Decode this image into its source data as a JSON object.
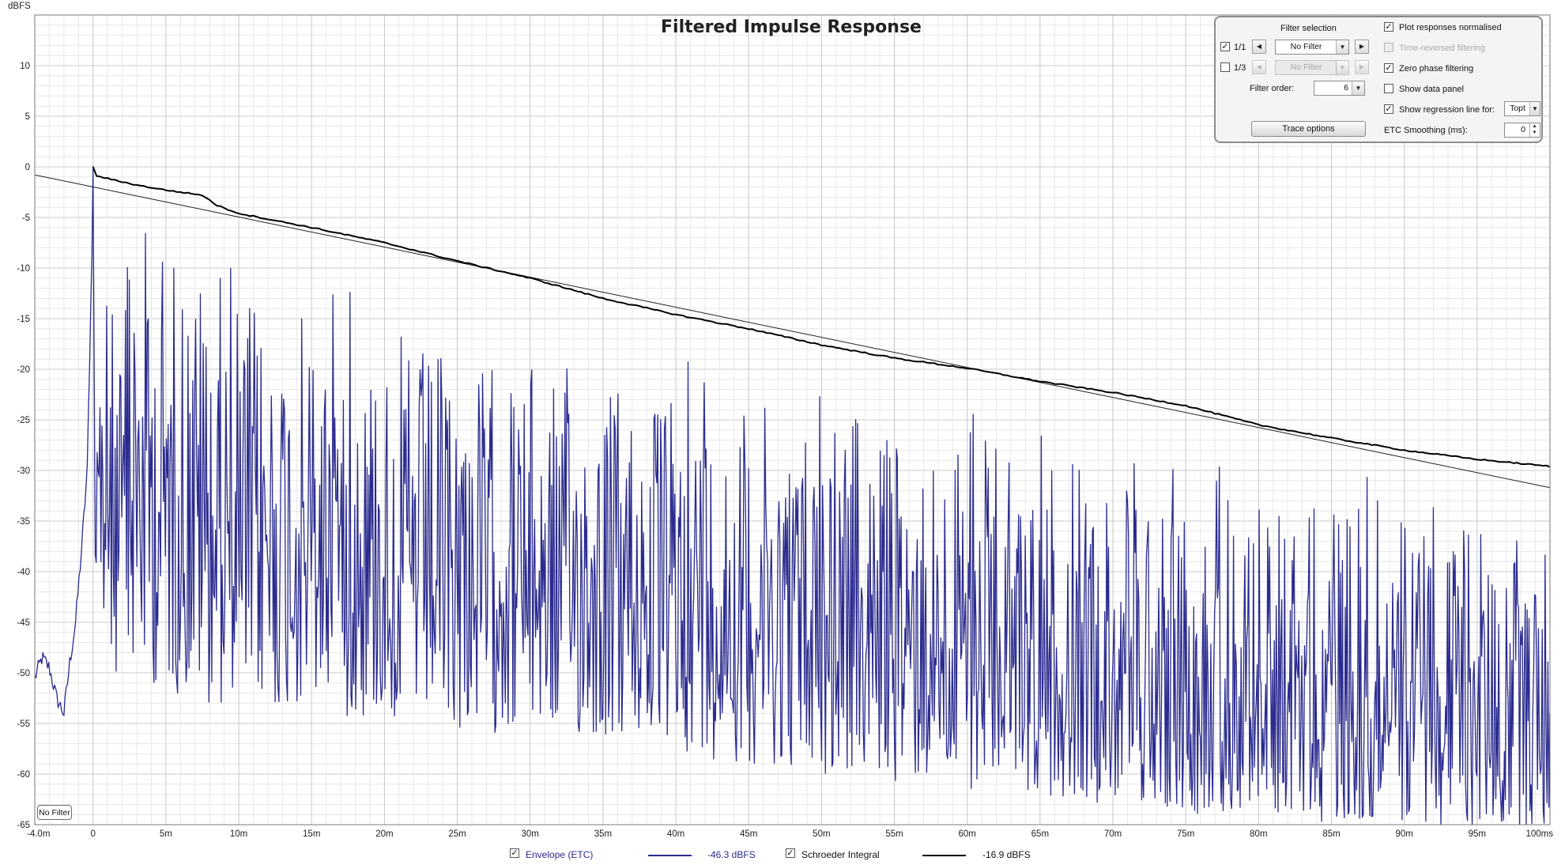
{
  "chart_data": {
    "type": "line",
    "title": "Filtered Impulse Response",
    "ylabel": "dBFS",
    "xlabel": "",
    "xlim": [
      -4.0,
      100
    ],
    "ylim": [
      -65,
      15
    ],
    "x_unit": "ms",
    "grid": true,
    "x_ticks": [
      {
        "v": -4,
        "label": "-4.0m"
      },
      {
        "v": 0,
        "label": "0"
      },
      {
        "v": 5,
        "label": "5m"
      },
      {
        "v": 10,
        "label": "10m"
      },
      {
        "v": 15,
        "label": "15m"
      },
      {
        "v": 20,
        "label": "20m"
      },
      {
        "v": 25,
        "label": "25m"
      },
      {
        "v": 30,
        "label": "30m"
      },
      {
        "v": 35,
        "label": "35m"
      },
      {
        "v": 40,
        "label": "40m"
      },
      {
        "v": 45,
        "label": "45m"
      },
      {
        "v": 50,
        "label": "50m"
      },
      {
        "v": 55,
        "label": "55m"
      },
      {
        "v": 60,
        "label": "60m"
      },
      {
        "v": 65,
        "label": "65m"
      },
      {
        "v": 70,
        "label": "70m"
      },
      {
        "v": 75,
        "label": "75m"
      },
      {
        "v": 80,
        "label": "80m"
      },
      {
        "v": 85,
        "label": "85m"
      },
      {
        "v": 90,
        "label": "90m"
      },
      {
        "v": 95,
        "label": "95m"
      },
      {
        "v": 100,
        "label": "100ms"
      }
    ],
    "y_ticks": [
      10,
      5,
      0,
      -5,
      -10,
      -15,
      -20,
      -25,
      -30,
      -35,
      -40,
      -45,
      -50,
      -55,
      -60,
      -65
    ],
    "series": [
      {
        "name": "Envelope (ETC)",
        "color": "#2b2b8f",
        "readout": "-46.3 dBFS",
        "envelope_peaks": [
          [
            -4.0,
            -50.5
          ],
          [
            -3.5,
            -48.5
          ],
          [
            -3.0,
            -49.5
          ],
          [
            -2.5,
            -52.5
          ],
          [
            -2.0,
            -54.0
          ],
          [
            -1.6,
            -49.0
          ],
          [
            -1.2,
            -45.0
          ],
          [
            -0.8,
            -38.0
          ],
          [
            -0.4,
            -30.0
          ],
          [
            -0.1,
            -10.0
          ],
          [
            0.0,
            0.0
          ],
          [
            0.3,
            -9.0
          ],
          [
            1.0,
            -12.0
          ],
          [
            2.0,
            -15.5
          ],
          [
            3.0,
            -5.0
          ],
          [
            6.3,
            -7.0
          ],
          [
            10.0,
            -12.0
          ],
          [
            15.0,
            -14.5
          ],
          [
            20.0,
            -16.0
          ],
          [
            25.0,
            -18.0
          ],
          [
            30.0,
            -19.0
          ],
          [
            35.0,
            -20.0
          ],
          [
            40.0,
            -22.0
          ],
          [
            45.0,
            -23.0
          ],
          [
            50.0,
            -24.0
          ],
          [
            55.0,
            -25.5
          ],
          [
            60.0,
            -27.0
          ],
          [
            65.0,
            -28.5
          ],
          [
            70.0,
            -29.5
          ],
          [
            75.0,
            -30.0
          ],
          [
            80.0,
            -31.5
          ],
          [
            85.0,
            -32.5
          ],
          [
            90.0,
            -34.0
          ],
          [
            95.0,
            -35.0
          ],
          [
            100.0,
            -36.0
          ]
        ],
        "envelope_troughs": [
          [
            0.0,
            -45.0
          ],
          [
            5.0,
            -48.0
          ],
          [
            10.0,
            -50.0
          ],
          [
            15.0,
            -50.0
          ],
          [
            20.0,
            -51.0
          ],
          [
            25.0,
            -52.0
          ],
          [
            30.0,
            -52.0
          ],
          [
            35.0,
            -53.0
          ],
          [
            40.0,
            -54.0
          ],
          [
            45.0,
            -55.0
          ],
          [
            50.0,
            -56.0
          ],
          [
            55.0,
            -57.0
          ],
          [
            60.0,
            -58.0
          ],
          [
            65.0,
            -58.0
          ],
          [
            70.0,
            -59.0
          ],
          [
            75.0,
            -60.0
          ],
          [
            80.0,
            -60.0
          ],
          [
            85.0,
            -61.0
          ],
          [
            90.0,
            -61.0
          ],
          [
            95.0,
            -62.0
          ],
          [
            100.0,
            -62.0
          ]
        ]
      },
      {
        "name": "Schroeder Integral",
        "color": "#000000",
        "readout": "-16.9 dBFS",
        "points": [
          [
            0.0,
            0.0
          ],
          [
            0.1,
            -0.8
          ],
          [
            0.5,
            -1.0
          ],
          [
            3.0,
            -1.8
          ],
          [
            5.0,
            -2.3
          ],
          [
            7.5,
            -2.8
          ],
          [
            8.5,
            -3.8
          ],
          [
            10.0,
            -4.6
          ],
          [
            15.0,
            -6.0
          ],
          [
            20.0,
            -7.5
          ],
          [
            25.0,
            -9.3
          ],
          [
            30.0,
            -11.0
          ],
          [
            35.0,
            -13.0
          ],
          [
            40.0,
            -14.6
          ],
          [
            45.0,
            -16.0
          ],
          [
            50.0,
            -17.6
          ],
          [
            55.0,
            -18.9
          ],
          [
            60.0,
            -19.9
          ],
          [
            65.0,
            -21.2
          ],
          [
            70.0,
            -22.3
          ],
          [
            75.0,
            -23.6
          ],
          [
            80.0,
            -25.5
          ],
          [
            85.0,
            -26.8
          ],
          [
            90.0,
            -28.0
          ],
          [
            95.0,
            -28.9
          ],
          [
            100.0,
            -29.6
          ]
        ]
      },
      {
        "name": "Regression line",
        "color": "#202020",
        "points": [
          [
            -4.0,
            -0.8
          ],
          [
            100.0,
            -31.7
          ]
        ]
      }
    ]
  },
  "panel": {
    "heading": "Filter selection",
    "row1": {
      "label": "1/1",
      "value": "No Filter",
      "checked": "✓"
    },
    "row2": {
      "label": "1/3",
      "value": "No Filter",
      "checked": ""
    },
    "filter_order_label": "Filter order:",
    "filter_order_value": "6",
    "trace_options": "Trace options",
    "options": [
      {
        "label": "Plot responses normalised",
        "checked": "✓"
      },
      {
        "label": "Time-reversed filtering",
        "checked": ""
      },
      {
        "label": "Zero phase filtering",
        "checked": "✓"
      },
      {
        "label": "Show data panel",
        "checked": ""
      },
      {
        "label": "Show regression line for:",
        "checked": "✓"
      }
    ],
    "regression_target": "Topt",
    "etc_smoothing_label": "ETC Smoothing (ms):",
    "etc_smoothing_value": "0"
  },
  "badge": "No Filter",
  "legend": {
    "envelope_label": "Envelope (ETC)",
    "envelope_value": "-46.3 dBFS",
    "schroeder_label": "Schroeder Integral",
    "schroeder_value": "-16.9 dBFS",
    "check": "✓"
  }
}
